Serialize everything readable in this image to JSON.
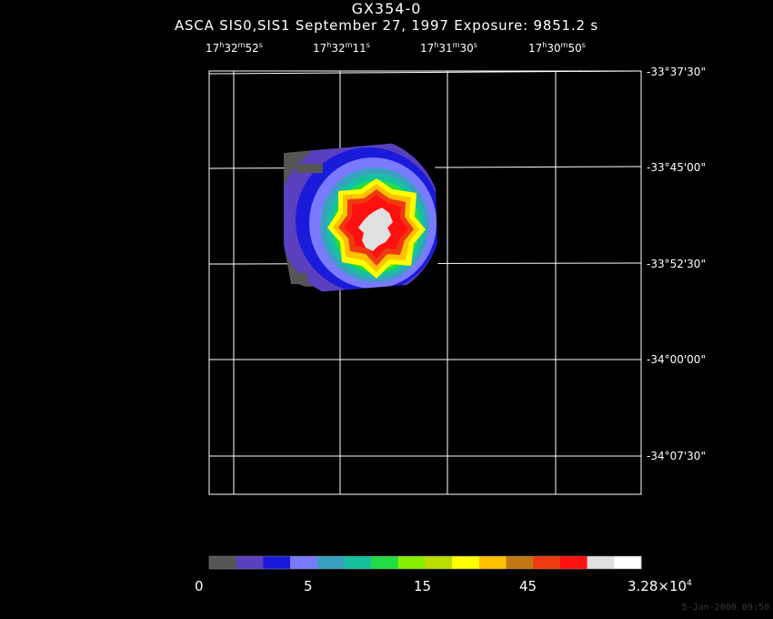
{
  "title": "GX354-0",
  "subtitle": "ASCA SIS0,SIS1 September 27, 1997 Exposure: 9851.2 s",
  "ra_labels": [
    {
      "h": "17",
      "m": "32",
      "s": "52"
    },
    {
      "h": "17",
      "m": "32",
      "s": "11"
    },
    {
      "h": "17",
      "m": "31",
      "s": "30"
    },
    {
      "h": "17",
      "m": "30",
      "s": "50"
    }
  ],
  "dec_labels": [
    "-33°37'30\"",
    "-33°45'00\"",
    "-33°52'30\"",
    "-34°00'00\"",
    "-34°07'30\""
  ],
  "colorbar": {
    "colors": [
      "#555555",
      "#5a3fbf",
      "#1a1adb",
      "#7a7aff",
      "#3aa0c0",
      "#16c0a0",
      "#22dd44",
      "#88ee00",
      "#bbdd00",
      "#ffff00",
      "#ffc000",
      "#c07810",
      "#ee3a10",
      "#ff1010",
      "#e0e0e0",
      "#ffffff"
    ],
    "labels": [
      "0",
      "5",
      "15",
      "45"
    ],
    "max_mantissa": "3.28×10",
    "max_exp": "4"
  },
  "timestamp": "5-Jan-2000 09:50"
}
